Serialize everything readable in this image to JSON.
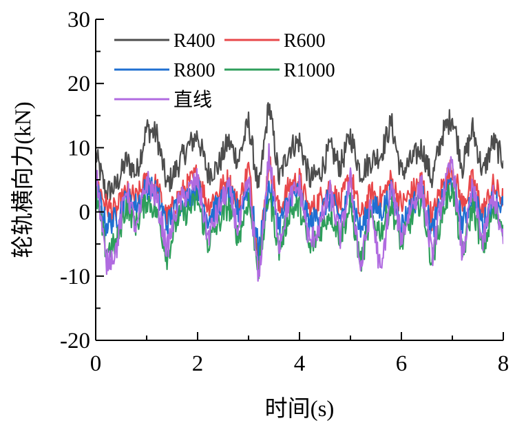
{
  "chart_data": {
    "type": "line",
    "title": "",
    "xlabel": "时间(s)",
    "ylabel": "轮轨横向力(kN)",
    "xlim": [
      0,
      8
    ],
    "ylim": [
      -20,
      30
    ],
    "xticks": [
      "0",
      "2",
      "4",
      "6",
      "8"
    ],
    "xtick_values": [
      0,
      2,
      4,
      6,
      8
    ],
    "yticks": [
      "30",
      "20",
      "10",
      "0",
      "-10",
      "-20"
    ],
    "ytick_values": [
      30,
      20,
      10,
      0,
      -10,
      -20
    ],
    "grid": false,
    "legend_position": "top-left",
    "x": [
      0,
      0.2,
      0.4,
      0.6,
      0.8,
      1.0,
      1.2,
      1.4,
      1.6,
      1.8,
      2.0,
      2.2,
      2.4,
      2.6,
      2.8,
      3.0,
      3.2,
      3.4,
      3.6,
      3.8,
      4.0,
      4.2,
      4.4,
      4.6,
      4.8,
      5.0,
      5.2,
      5.4,
      5.6,
      5.8,
      6.0,
      6.2,
      6.4,
      6.6,
      6.8,
      7.0,
      7.2,
      7.4,
      7.6,
      7.8,
      8.0
    ],
    "series": [
      {
        "name": "R400",
        "color": "#4d4d4d",
        "values": [
          9,
          3,
          4,
          8,
          6,
          13,
          12,
          4,
          7,
          10,
          12,
          6,
          7,
          11,
          8,
          14,
          3,
          17,
          5,
          10,
          11,
          5,
          6,
          10,
          7,
          12,
          6,
          8,
          9,
          14,
          6,
          8,
          10,
          5,
          12,
          15,
          7,
          13,
          6,
          11,
          8
        ]
      },
      {
        "name": "R600",
        "color": "#e8474a",
        "values": [
          5,
          1,
          0,
          3,
          2,
          5,
          4,
          -1,
          2,
          4,
          6,
          1,
          3,
          5,
          1,
          7,
          -8,
          8,
          0,
          4,
          5,
          0,
          2,
          4,
          1,
          6,
          -1,
          3,
          2,
          5,
          1,
          3,
          5,
          -1,
          4,
          7,
          1,
          5,
          0,
          4,
          2
        ]
      },
      {
        "name": "R800",
        "color": "#1f6fd1",
        "values": [
          4,
          -2,
          -1,
          2,
          1,
          4,
          3,
          -2,
          1,
          2,
          4,
          -1,
          1,
          3,
          0,
          4,
          -6,
          4,
          -2,
          2,
          3,
          -2,
          0,
          2,
          -1,
          3,
          -3,
          1,
          0,
          3,
          -2,
          1,
          3,
          -3,
          2,
          5,
          -2,
          3,
          -2,
          2,
          1
        ]
      },
      {
        "name": "R1000",
        "color": "#2e9e5b",
        "values": [
          3,
          -6,
          -5,
          1,
          -2,
          2,
          0,
          -7,
          -1,
          0,
          2,
          -5,
          -2,
          1,
          -4,
          2,
          -9,
          3,
          -6,
          0,
          1,
          -6,
          -3,
          0,
          -4,
          1,
          -8,
          -1,
          -3,
          1,
          -5,
          -1,
          2,
          -8,
          0,
          4,
          -7,
          1,
          -6,
          0,
          -2
        ]
      },
      {
        "name": "直线",
        "color": "#b06be0",
        "values": [
          7,
          -8,
          -6,
          4,
          -3,
          5,
          2,
          -6,
          1,
          3,
          5,
          -4,
          0,
          4,
          -3,
          5,
          -11,
          9,
          -5,
          2,
          4,
          -5,
          -2,
          3,
          -4,
          5,
          -9,
          1,
          -10,
          4,
          -4,
          1,
          4,
          -7,
          2,
          8,
          -7,
          4,
          -5,
          3,
          -5
        ]
      }
    ]
  }
}
